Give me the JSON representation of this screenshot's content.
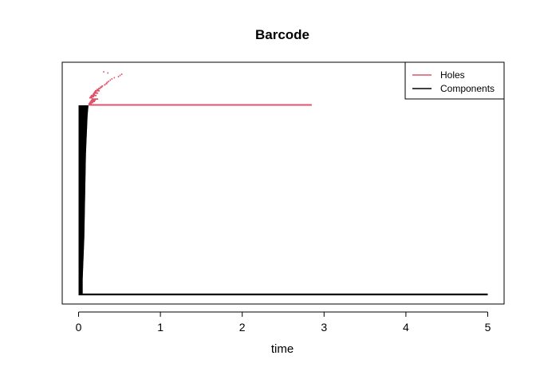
{
  "chart_data": {
    "type": "barcode",
    "title": "Barcode",
    "xlabel": "time",
    "ylabel": "",
    "xlim": [
      -0.2,
      5.2
    ],
    "xticks": [
      0,
      1,
      2,
      3,
      4,
      5
    ],
    "grid": false,
    "legend": {
      "position": "top-right",
      "entries": [
        {
          "label": "Holes",
          "color": "#DF536B"
        },
        {
          "label": "Components",
          "color": "#000000"
        }
      ]
    },
    "series": [
      {
        "name": "Components",
        "color": "#000000",
        "bars": {
          "count": 160,
          "birth": 0,
          "death_profile": [
            [
              0,
              0.05
            ],
            [
              0.08,
              0.05
            ],
            [
              0.3,
              0.07
            ],
            [
              0.75,
              0.09
            ],
            [
              0.95,
              0.11
            ],
            [
              1.0,
              0.12
            ]
          ],
          "long_bar": {
            "birth": 0,
            "death": 5
          }
        }
      },
      {
        "name": "Holes",
        "color": "#DF536B",
        "long_bar": {
          "birth": 0.12,
          "death": 2.85
        },
        "short_bars": [
          [
            0.12,
            0.16
          ],
          [
            0.13,
            0.18
          ],
          [
            0.14,
            0.2
          ],
          [
            0.15,
            0.21
          ],
          [
            0.16,
            0.24
          ],
          [
            0.13,
            0.17
          ],
          [
            0.14,
            0.19
          ],
          [
            0.15,
            0.22
          ],
          [
            0.17,
            0.2
          ],
          [
            0.18,
            0.24
          ],
          [
            0.19,
            0.22
          ],
          [
            0.2,
            0.26
          ],
          [
            0.22,
            0.25
          ],
          [
            0.24,
            0.27
          ],
          [
            0.26,
            0.29
          ],
          [
            0.28,
            0.3
          ],
          [
            0.31,
            0.33
          ],
          [
            0.33,
            0.35
          ],
          [
            0.34,
            0.36
          ],
          [
            0.36,
            0.37
          ],
          [
            0.38,
            0.39
          ],
          [
            0.4,
            0.41
          ],
          [
            0.43,
            0.44
          ],
          [
            0.48,
            0.49
          ],
          [
            0.5,
            0.51
          ],
          [
            0.52,
            0.53
          ],
          [
            0.35,
            0.36
          ],
          [
            0.3,
            0.31
          ]
        ]
      }
    ]
  }
}
